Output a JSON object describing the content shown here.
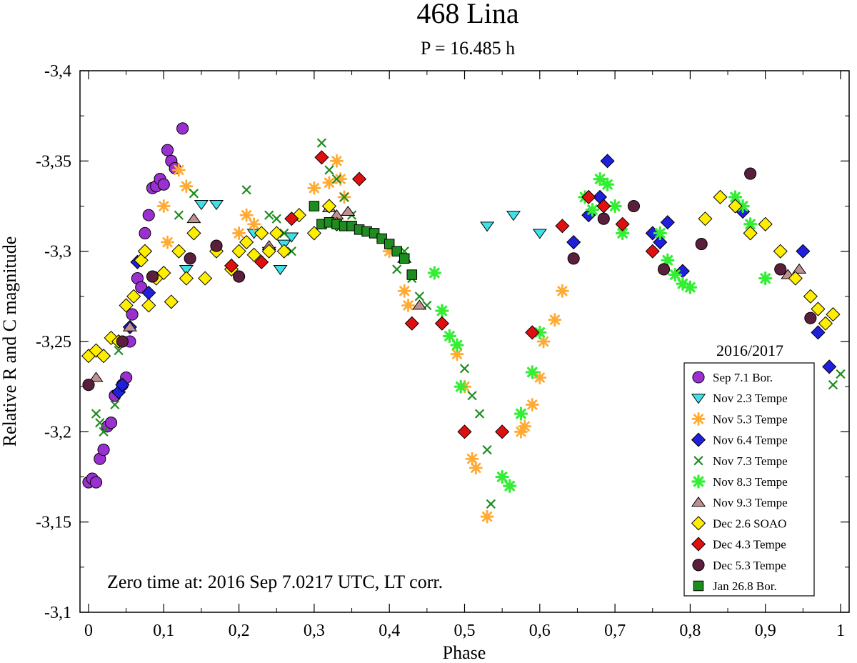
{
  "chart_data": {
    "type": "scatter",
    "title": "468 Lina",
    "subtitle": "P = 16.485 h",
    "xlabel": "Phase",
    "ylabel": "Relative R and C magnitude",
    "xlim": [
      0,
      1
    ],
    "ylim": [
      -3.1,
      -3.4
    ],
    "x_ticks": [
      "0",
      "0,1",
      "0,2",
      "0,3",
      "0,4",
      "0,5",
      "0,6",
      "0,7",
      "0,8",
      "0,9",
      "1"
    ],
    "y_ticks": [
      "-3,4",
      "-3,35",
      "-3,3",
      "-3,25",
      "-3,2",
      "-3,15",
      "-3,1"
    ],
    "annotation": "Zero time at: 2016 Sep 7.0217 UTC,  LT corr.",
    "legend_title": "2016/2017",
    "legend_position": "right",
    "series": [
      {
        "name": "Sep 7.1 Bor.",
        "marker": "circle",
        "color": "#9b30d0",
        "x": [
          0.0,
          0.005,
          0.01,
          0.015,
          0.02,
          0.025,
          0.03,
          0.035,
          0.045,
          0.05,
          0.055,
          0.058,
          0.065,
          0.07,
          0.075,
          0.08,
          0.085,
          0.09,
          0.095,
          0.1,
          0.105,
          0.11,
          0.115,
          0.125
        ],
        "y": [
          -3.172,
          -3.174,
          -3.172,
          -3.185,
          -3.19,
          -3.203,
          -3.205,
          -3.22,
          -3.226,
          -3.23,
          -3.25,
          -3.265,
          -3.285,
          -3.28,
          -3.31,
          -3.32,
          -3.335,
          -3.336,
          -3.34,
          -3.337,
          -3.356,
          -3.35,
          -3.346,
          -3.368
        ]
      },
      {
        "name": "Nov 2.3 Tempe",
        "marker": "tri-down",
        "color": "#40e0e8",
        "x": [
          0.13,
          0.15,
          0.17,
          0.22,
          0.24,
          0.255,
          0.26,
          0.27,
          0.53,
          0.565,
          0.6
        ],
        "y": [
          -3.29,
          -3.326,
          -3.326,
          -3.31,
          -3.3,
          -3.29,
          -3.304,
          -3.308,
          -3.314,
          -3.32,
          -3.31
        ]
      },
      {
        "name": "Nov 5.3 Tempe",
        "marker": "star",
        "color": "#ffaa33",
        "x": [
          0.1,
          0.105,
          0.12,
          0.13,
          0.2,
          0.21,
          0.22,
          0.3,
          0.32,
          0.33,
          0.335,
          0.34,
          0.4,
          0.42,
          0.425,
          0.49,
          0.5,
          0.51,
          0.515,
          0.53,
          0.575,
          0.58,
          0.59,
          0.6,
          0.605,
          0.62,
          0.63
        ],
        "y": [
          -3.325,
          -3.305,
          -3.345,
          -3.336,
          -3.31,
          -3.32,
          -3.315,
          -3.335,
          -3.338,
          -3.35,
          -3.34,
          -3.33,
          -3.3,
          -3.278,
          -3.27,
          -3.243,
          -3.225,
          -3.185,
          -3.18,
          -3.153,
          -3.2,
          -3.203,
          -3.215,
          -3.23,
          -3.25,
          -3.262,
          -3.278
        ]
      },
      {
        "name": "Nov 6.4 Tempe",
        "marker": "diamond",
        "color": "#1f1fdc",
        "x": [
          0.04,
          0.045,
          0.055,
          0.065,
          0.075,
          0.08,
          0.645,
          0.665,
          0.68,
          0.69,
          0.75,
          0.76,
          0.77,
          0.79,
          0.87,
          0.95,
          0.97,
          0.985
        ],
        "y": [
          -3.222,
          -3.226,
          -3.258,
          -3.294,
          -3.3,
          -3.277,
          -3.305,
          -3.32,
          -3.33,
          -3.35,
          -3.31,
          -3.305,
          -3.316,
          -3.289,
          -3.322,
          -3.3,
          -3.255,
          -3.236
        ]
      },
      {
        "name": "Nov 7.3 Tempe",
        "marker": "x",
        "color": "#1e8c1e",
        "x": [
          0.01,
          0.015,
          0.02,
          0.035,
          0.04,
          0.12,
          0.14,
          0.21,
          0.24,
          0.25,
          0.26,
          0.27,
          0.31,
          0.32,
          0.33,
          0.34,
          0.35,
          0.41,
          0.42,
          0.43,
          0.44,
          0.45,
          0.5,
          0.51,
          0.52,
          0.53,
          0.535,
          0.99,
          1.0
        ],
        "y": [
          -3.21,
          -3.205,
          -3.2,
          -3.215,
          -3.245,
          -3.32,
          -3.332,
          -3.334,
          -3.32,
          -3.318,
          -3.31,
          -3.3,
          -3.36,
          -3.345,
          -3.34,
          -3.33,
          -3.32,
          -3.29,
          -3.3,
          -3.285,
          -3.275,
          -3.27,
          -3.235,
          -3.22,
          -3.21,
          -3.19,
          -3.16,
          -3.226,
          -3.232
        ]
      },
      {
        "name": "Nov 8.3 Tempe",
        "marker": "burst",
        "color": "#33ee33",
        "x": [
          0.46,
          0.47,
          0.48,
          0.49,
          0.495,
          0.55,
          0.56,
          0.575,
          0.59,
          0.6,
          0.66,
          0.67,
          0.68,
          0.69,
          0.7,
          0.71,
          0.76,
          0.77,
          0.78,
          0.79,
          0.8,
          0.86,
          0.87,
          0.88,
          0.9
        ],
        "y": [
          -3.288,
          -3.267,
          -3.253,
          -3.248,
          -3.225,
          -3.175,
          -3.17,
          -3.21,
          -3.233,
          -3.255,
          -3.33,
          -3.323,
          -3.34,
          -3.337,
          -3.325,
          -3.31,
          -3.31,
          -3.295,
          -3.287,
          -3.282,
          -3.28,
          -3.33,
          -3.325,
          -3.315,
          -3.285
        ]
      },
      {
        "name": "Nov 9.3 Tempe",
        "marker": "tri-up",
        "color": "#c09090",
        "x": [
          0.01,
          0.055,
          0.14,
          0.24,
          0.32,
          0.33,
          0.345,
          0.42,
          0.44,
          0.93,
          0.945
        ],
        "y": [
          -3.23,
          -3.258,
          -3.318,
          -3.303,
          -3.324,
          -3.32,
          -3.322,
          -3.296,
          -3.27,
          -3.287,
          -3.29
        ]
      },
      {
        "name": "Dec 2.6 SOAO",
        "marker": "diamond",
        "color": "#ffee00",
        "x": [
          0.0,
          0.01,
          0.02,
          0.03,
          0.04,
          0.05,
          0.06,
          0.07,
          0.075,
          0.08,
          0.09,
          0.1,
          0.11,
          0.12,
          0.13,
          0.14,
          0.155,
          0.17,
          0.19,
          0.2,
          0.21,
          0.22,
          0.23,
          0.24,
          0.25,
          0.26,
          0.28,
          0.3,
          0.32,
          0.33,
          0.82,
          0.84,
          0.86,
          0.88,
          0.9,
          0.92,
          0.94,
          0.96,
          0.97,
          0.98,
          0.99
        ],
        "y": [
          -3.242,
          -3.245,
          -3.242,
          -3.252,
          -3.25,
          -3.27,
          -3.275,
          -3.295,
          -3.3,
          -3.27,
          -3.285,
          -3.288,
          -3.272,
          -3.3,
          -3.285,
          -3.31,
          -3.285,
          -3.3,
          -3.29,
          -3.3,
          -3.305,
          -3.298,
          -3.31,
          -3.3,
          -3.31,
          -3.3,
          -3.32,
          -3.31,
          -3.325,
          -3.315,
          -3.318,
          -3.33,
          -3.325,
          -3.31,
          -3.315,
          -3.3,
          -3.285,
          -3.275,
          -3.268,
          -3.26,
          -3.265
        ]
      },
      {
        "name": "Dec 4.3 Tempe",
        "marker": "diamond",
        "color": "#e01010",
        "x": [
          0.19,
          0.23,
          0.27,
          0.31,
          0.36,
          0.43,
          0.47,
          0.5,
          0.55,
          0.59,
          0.63,
          0.665,
          0.685,
          0.71,
          0.75
        ],
        "y": [
          -3.292,
          -3.294,
          -3.318,
          -3.352,
          -3.34,
          -3.26,
          -3.26,
          -3.2,
          -3.2,
          -3.255,
          -3.314,
          -3.33,
          -3.325,
          -3.315,
          -3.3
        ]
      },
      {
        "name": "Dec 5.3 Tempe",
        "marker": "circle",
        "color": "#5a1f3c",
        "x": [
          0.0,
          0.045,
          0.085,
          0.135,
          0.17,
          0.2,
          0.645,
          0.685,
          0.725,
          0.765,
          0.815,
          0.88,
          0.92,
          0.96
        ],
        "y": [
          -3.226,
          -3.25,
          -3.286,
          -3.296,
          -3.303,
          -3.286,
          -3.296,
          -3.318,
          -3.325,
          -3.29,
          -3.304,
          -3.343,
          -3.29,
          -3.263
        ]
      },
      {
        "name": "Jan 26.8 Bor.",
        "marker": "square",
        "color": "#1e8c1e",
        "x": [
          0.3,
          0.31,
          0.32,
          0.33,
          0.34,
          0.35,
          0.36,
          0.37,
          0.38,
          0.39,
          0.4,
          0.41,
          0.42,
          0.43
        ],
        "y": [
          -3.325,
          -3.315,
          -3.316,
          -3.315,
          -3.314,
          -3.314,
          -3.312,
          -3.311,
          -3.31,
          -3.307,
          -3.304,
          -3.3,
          -3.296,
          -3.287
        ]
      }
    ]
  }
}
